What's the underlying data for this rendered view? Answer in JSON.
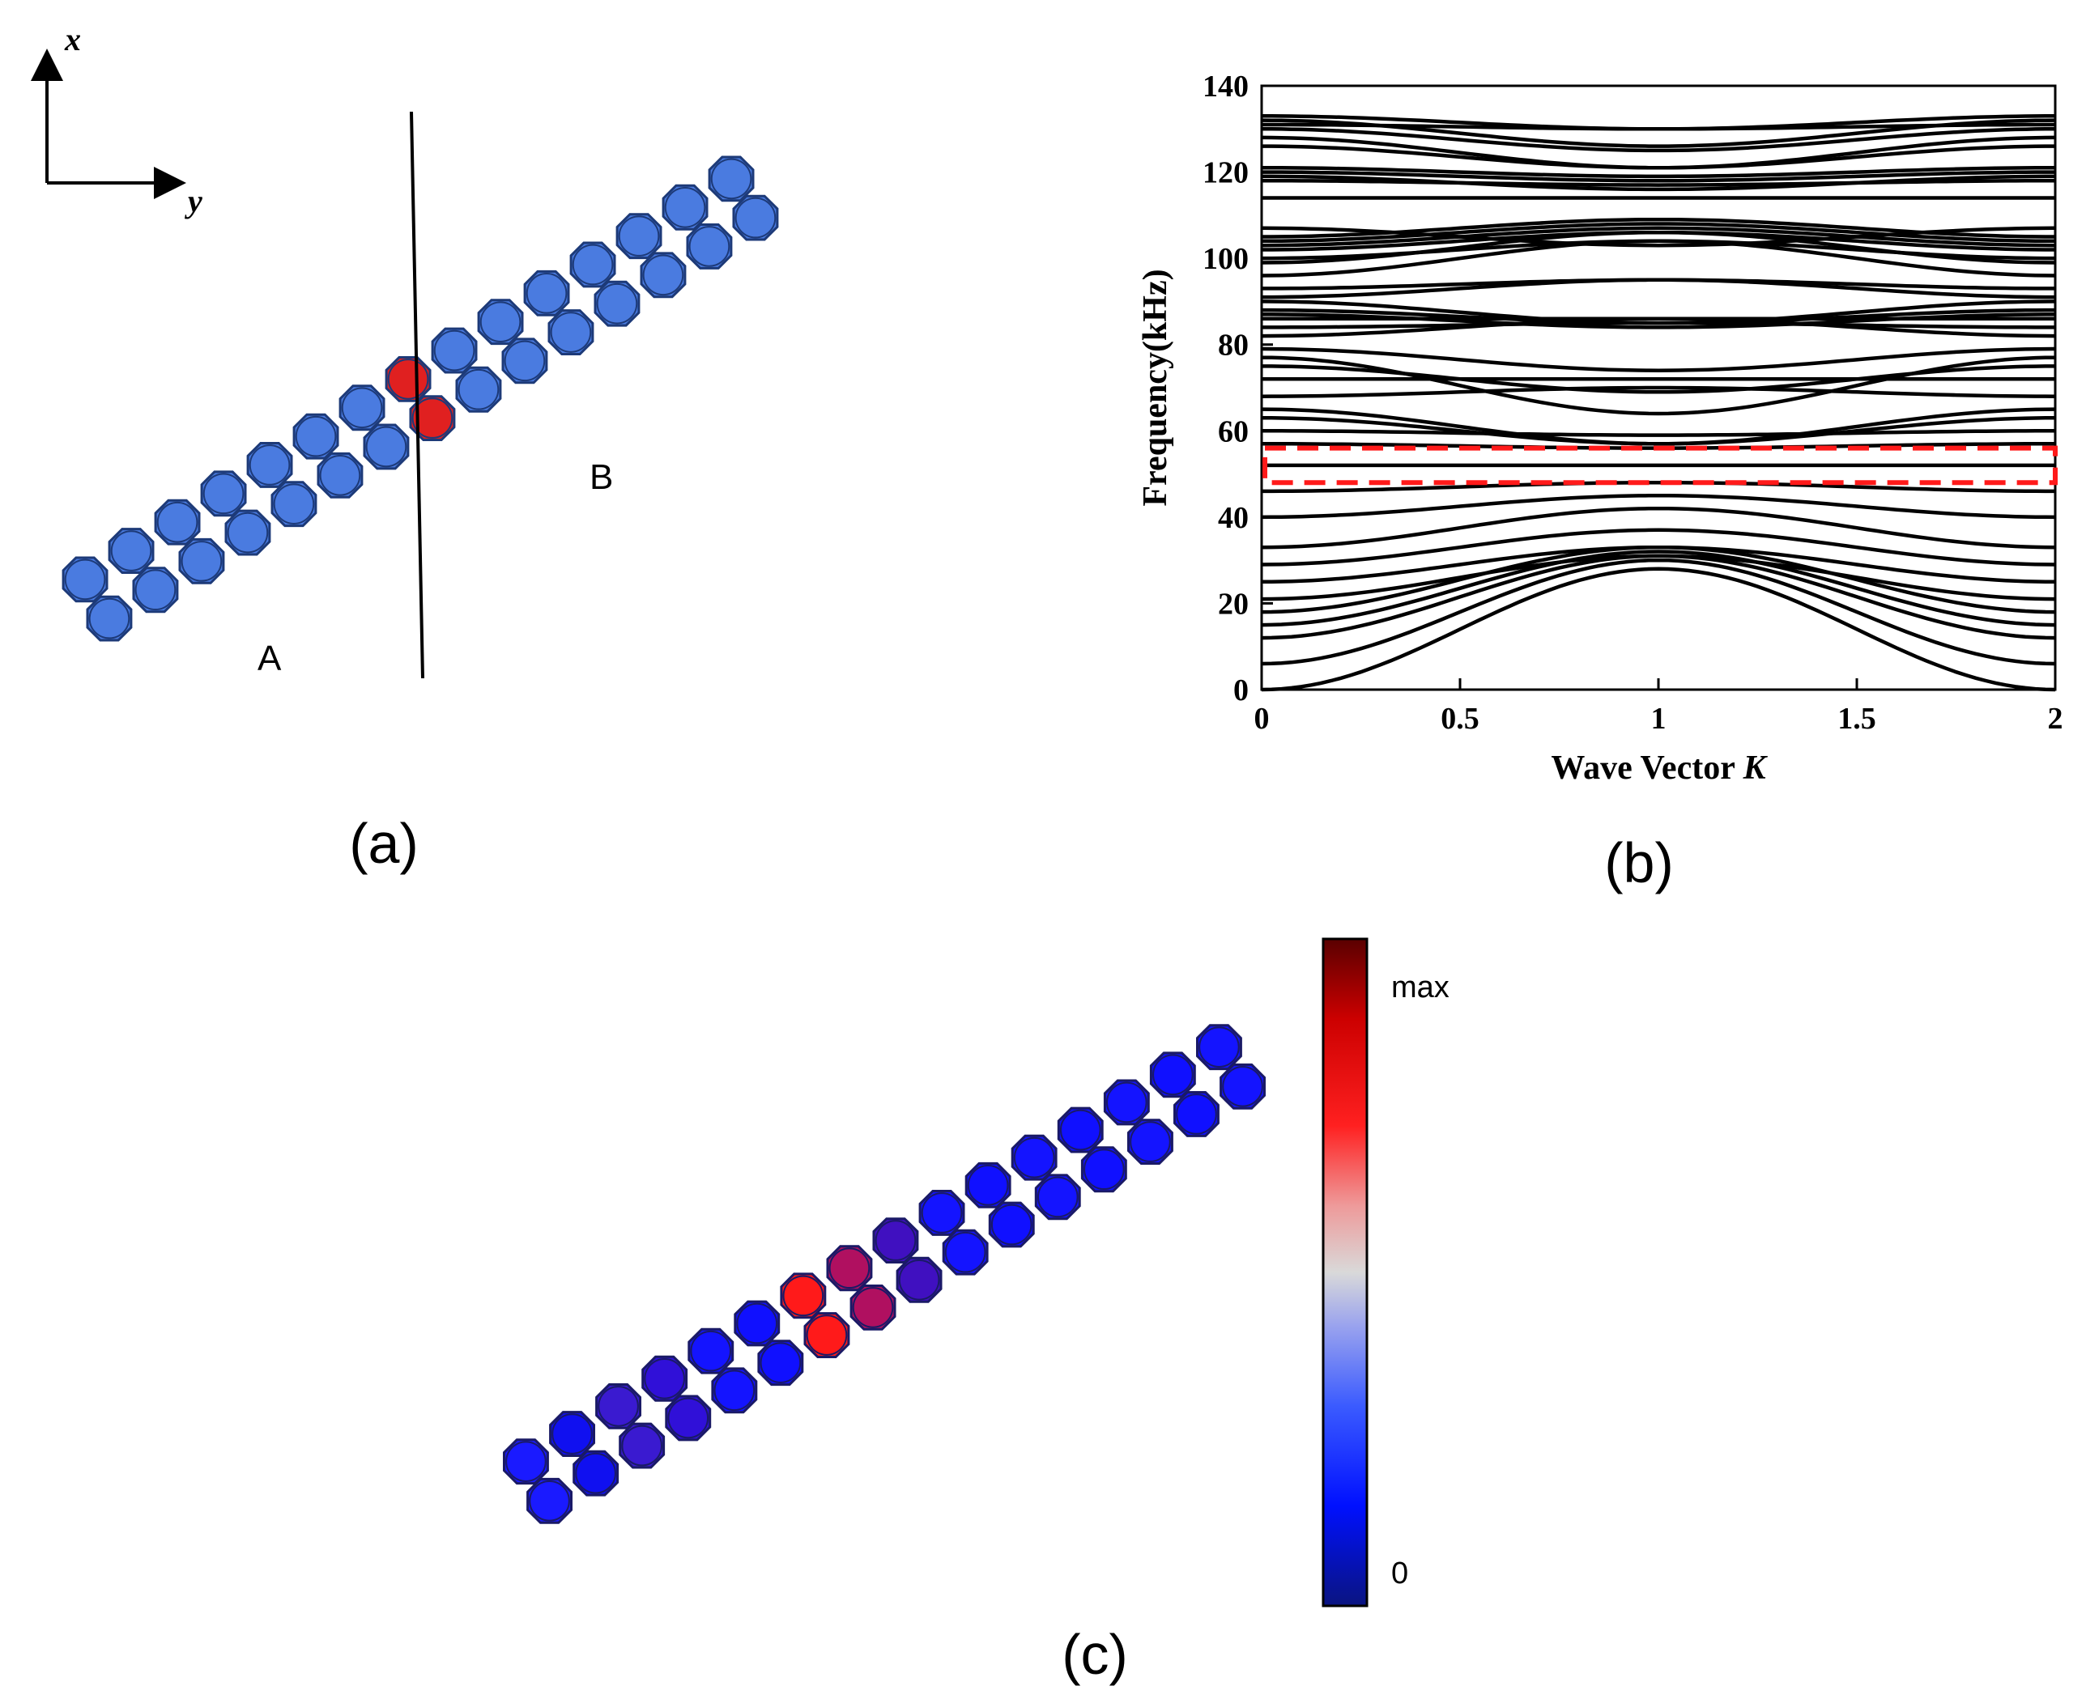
{
  "panel_a": {
    "label": "(a)",
    "axis_x_label": "x",
    "axis_y_label": "y",
    "region_a_label": "A",
    "region_b_label": "B",
    "cell_color": "#4a7be0",
    "interface_color": "#e02020"
  },
  "panel_b": {
    "label": "(b)",
    "highlight_color": "#ff1a1a"
  },
  "panel_c": {
    "label": "(c)",
    "colorbar_max_label": "max",
    "colorbar_min_label": "0"
  },
  "chart_data": {
    "type": "line",
    "title": "",
    "xlabel": "Wave Vector",
    "xlabel_symbol": "K",
    "ylabel": "Frequency(kHz)",
    "xlim": [
      0,
      2
    ],
    "ylim": [
      0,
      140
    ],
    "xticks": [
      "0",
      "0.5",
      "1",
      "1.5",
      "2"
    ],
    "yticks": [
      "0",
      "20",
      "40",
      "60",
      "80",
      "100",
      "120",
      "140"
    ],
    "grid": false,
    "highlight_band": [
      48,
      56
    ],
    "series_note": "each band given as [frequency at K=0 (=K=2), frequency at K=1]",
    "bands": [
      [
        0,
        28
      ],
      [
        6,
        30
      ],
      [
        12,
        31
      ],
      [
        15,
        32
      ],
      [
        18,
        33
      ],
      [
        21,
        31
      ],
      [
        25,
        33
      ],
      [
        29,
        37
      ],
      [
        33,
        42
      ],
      [
        40,
        45
      ],
      [
        46,
        48
      ],
      [
        52,
        52
      ],
      [
        57,
        56
      ],
      [
        60,
        59
      ],
      [
        63,
        57
      ],
      [
        65,
        57
      ],
      [
        68,
        70
      ],
      [
        72,
        72
      ],
      [
        75,
        69
      ],
      [
        77,
        64
      ],
      [
        79,
        74
      ],
      [
        82,
        86
      ],
      [
        84,
        85
      ],
      [
        86,
        86
      ],
      [
        87,
        84
      ],
      [
        88,
        85
      ],
      [
        90,
        85
      ],
      [
        91,
        95
      ],
      [
        93,
        95
      ],
      [
        96,
        104
      ],
      [
        99,
        106
      ],
      [
        100,
        104
      ],
      [
        102,
        106
      ],
      [
        103,
        107
      ],
      [
        104,
        108
      ],
      [
        105,
        109
      ],
      [
        107,
        103
      ],
      [
        114,
        114
      ],
      [
        118,
        117
      ],
      [
        119,
        116
      ],
      [
        120,
        118
      ],
      [
        121,
        119
      ],
      [
        126,
        121
      ],
      [
        128,
        121
      ],
      [
        130,
        125
      ],
      [
        131,
        130
      ],
      [
        132,
        126
      ],
      [
        133,
        130
      ]
    ]
  }
}
